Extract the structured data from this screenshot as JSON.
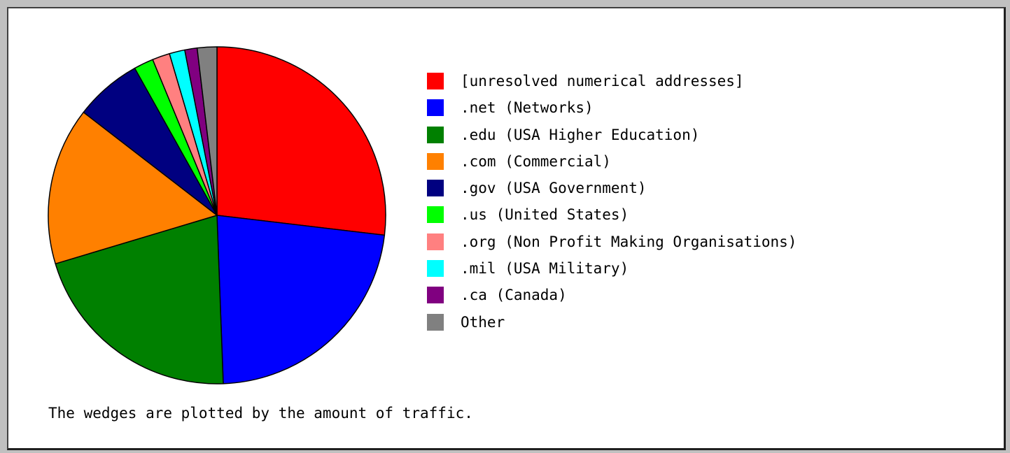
{
  "chart_data": {
    "type": "pie",
    "title": "",
    "caption": "The wedges are plotted by the amount of traffic.",
    "legend_placement": "right",
    "start_angle_deg": 0,
    "direction": "clockwise",
    "slices": [
      {
        "label": "[unresolved numerical addresses]",
        "value": 27.2,
        "color": "#ff0000"
      },
      {
        "label": ".net (Networks)",
        "value": 22.8,
        "color": "#0000ff"
      },
      {
        "label": ".edu (USA Higher Education)",
        "value": 21.2,
        "color": "#008000"
      },
      {
        "label": ".com (Commercial)",
        "value": 15.3,
        "color": "#ff8000"
      },
      {
        "label": ".gov (USA Government)",
        "value": 6.5,
        "color": "#000080"
      },
      {
        "label": ".us (United States)",
        "value": 1.9,
        "color": "#00ff00"
      },
      {
        "label": ".org (Non Profit Making Organisations)",
        "value": 1.7,
        "color": "#ff8080"
      },
      {
        "label": ".mil (USA Military)",
        "value": 1.5,
        "color": "#00ffff"
      },
      {
        "label": ".ca (Canada)",
        "value": 1.2,
        "color": "#800080"
      },
      {
        "label": "Other",
        "value": 1.9,
        "color": "#808080"
      }
    ]
  }
}
